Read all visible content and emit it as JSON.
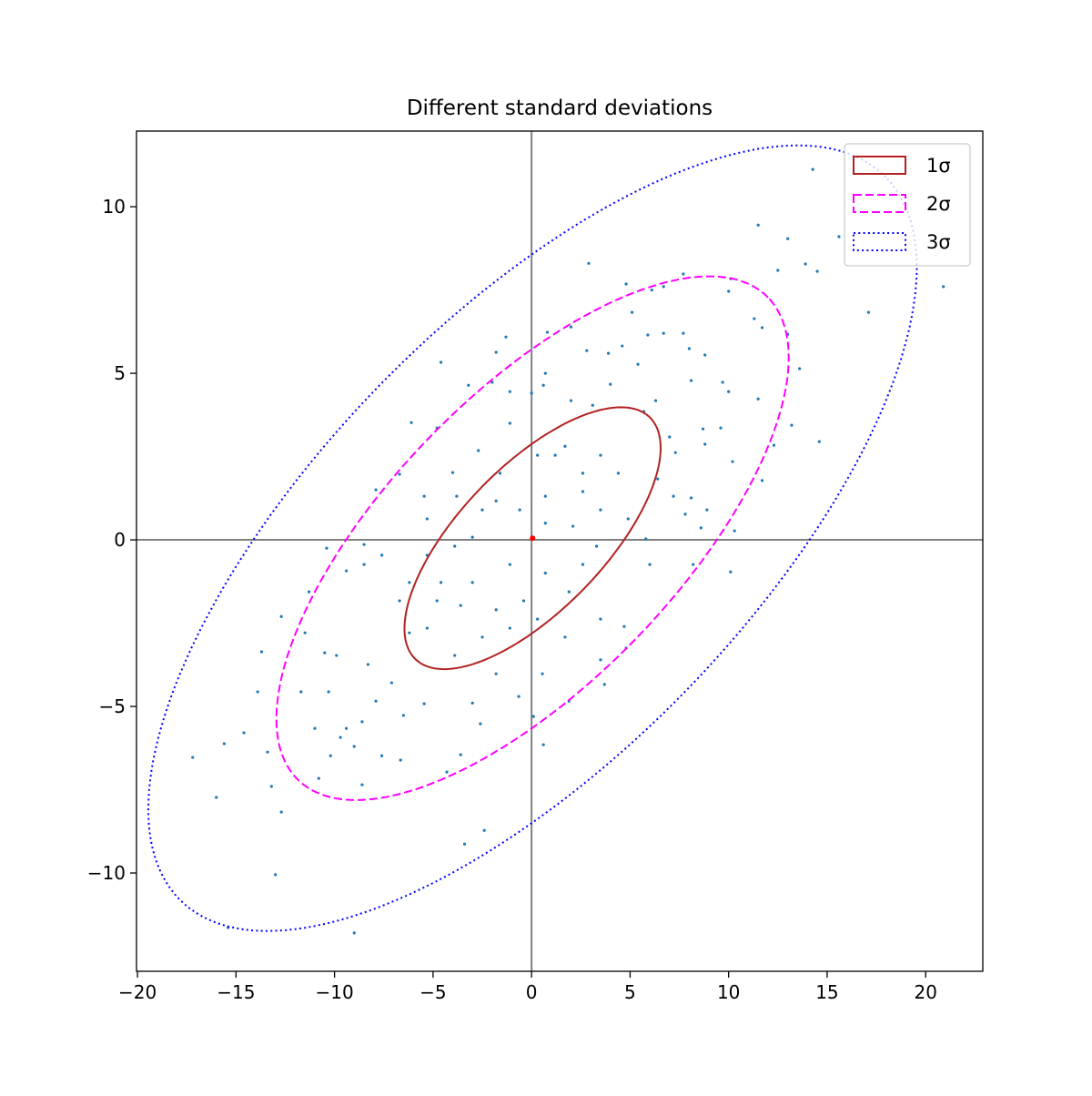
{
  "chart_data": {
    "type": "scatter",
    "title": "Different standard deviations",
    "xlabel": "",
    "ylabel": "",
    "xlim": [
      -20.05,
      22.9
    ],
    "ylim": [
      -12.95,
      12.27
    ],
    "xticks": [
      -20,
      -15,
      -10,
      -5,
      0,
      5,
      10,
      15,
      20
    ],
    "yticks": [
      -10,
      -5,
      0,
      5,
      10
    ],
    "xtick_labels": [
      "−20",
      "−15",
      "−10",
      "−5",
      "0",
      "5",
      "10",
      "15",
      "20"
    ],
    "ytick_labels": [
      "−10",
      "−5",
      "0",
      "5",
      "10"
    ],
    "grid": false,
    "reference_lines": {
      "x": 0,
      "y": 0,
      "color": "#808080"
    },
    "scatter_color": "#1f77b4",
    "mean_marker_color": "#ff0000",
    "legend_position": "top-right",
    "ellipse_params": {
      "mean": [
        0.05,
        0.05
      ],
      "std_x": 6.5,
      "std_y": 3.93,
      "pearson": 0.69
    },
    "ellipses": [
      {
        "label": "1σ",
        "n_std": 1,
        "color": "#b22222",
        "style": "solid"
      },
      {
        "label": "2σ",
        "n_std": 2,
        "color": "#ff00ff",
        "style": "dashed"
      },
      {
        "label": "3σ",
        "n_std": 3,
        "color": "#0000ff",
        "style": "dotted"
      }
    ],
    "points": [
      [
        14.27,
        11.12
      ],
      [
        11.5,
        9.45
      ],
      [
        13.0,
        9.04
      ],
      [
        15.6,
        9.1
      ],
      [
        20.9,
        7.6
      ],
      [
        17.1,
        6.83
      ],
      [
        14.5,
        8.06
      ],
      [
        13.9,
        8.28
      ],
      [
        12.5,
        8.09
      ],
      [
        2.9,
        8.3
      ],
      [
        10.1,
        7.84
      ],
      [
        7.7,
        7.98
      ],
      [
        4.8,
        7.68
      ],
      [
        6.1,
        7.5
      ],
      [
        6.7,
        7.6
      ],
      [
        10,
        7.46
      ],
      [
        11.3,
        6.64
      ],
      [
        11.7,
        6.37
      ],
      [
        13.0,
        6.17
      ],
      [
        13.6,
        5.14
      ],
      [
        13.2,
        3.44
      ],
      [
        14.6,
        2.95
      ],
      [
        12.3,
        2.84
      ],
      [
        11.7,
        1.78
      ],
      [
        10.2,
        2.35
      ],
      [
        10.3,
        0.27
      ],
      [
        11.5,
        4.23
      ],
      [
        9.6,
        3.36
      ],
      [
        8.8,
        2.87
      ],
      [
        8.7,
        3.33
      ],
      [
        10,
        4.45
      ],
      [
        9.7,
        4.73
      ],
      [
        8.1,
        4.78
      ],
      [
        8,
        5.74
      ],
      [
        8.8,
        5.55
      ],
      [
        7.7,
        6.2
      ],
      [
        6.7,
        6.2
      ],
      [
        5.9,
        6.15
      ],
      [
        5.1,
        6.83
      ],
      [
        4.6,
        5.82
      ],
      [
        3.9,
        5.6
      ],
      [
        2.8,
        5.68
      ],
      [
        2,
        6.39
      ],
      [
        0.8,
        6.23
      ],
      [
        -1.3,
        6.09
      ],
      [
        -1.8,
        5.63
      ],
      [
        -4.6,
        5.33
      ],
      [
        -3.2,
        4.64
      ],
      [
        -2,
        4.73
      ],
      [
        0,
        4.4
      ],
      [
        0.6,
        4.64
      ],
      [
        2,
        4.18
      ],
      [
        3.1,
        4.04
      ],
      [
        4,
        4.67
      ],
      [
        5.7,
        3.85
      ],
      [
        7,
        3.09
      ],
      [
        7.3,
        2.62
      ],
      [
        6.4,
        1.83
      ],
      [
        7.2,
        1.31
      ],
      [
        8.1,
        1.26
      ],
      [
        8.9,
        0.9
      ],
      [
        8.6,
        0.36
      ],
      [
        7.8,
        0.77
      ],
      [
        5.8,
        0.03
      ],
      [
        6,
        -0.74
      ],
      [
        8.2,
        -0.74
      ],
      [
        10.1,
        -0.96
      ],
      [
        -6.1,
        3.52
      ],
      [
        -6.7,
        1.97
      ],
      [
        -7.9,
        1.5
      ],
      [
        -5.45,
        1.31
      ],
      [
        -4,
        2.02
      ],
      [
        -3.8,
        1.31
      ],
      [
        -2.7,
        2.68
      ],
      [
        -1.1,
        3.5
      ],
      [
        0.3,
        2.54
      ],
      [
        1.7,
        2.81
      ],
      [
        2.6,
        2
      ],
      [
        3.5,
        2.54
      ],
      [
        4.4,
        2
      ],
      [
        -1.8,
        1.17
      ],
      [
        -0.6,
        0.9
      ],
      [
        0.7,
        0.5
      ],
      [
        2.1,
        0.41
      ],
      [
        3.5,
        0.9
      ],
      [
        4.9,
        0.63
      ],
      [
        -3,
        0.08
      ],
      [
        -3.9,
        -0.19
      ],
      [
        -5.3,
        -0.46
      ],
      [
        -6.2,
        -1.28
      ],
      [
        -7.6,
        -0.46
      ],
      [
        -8.5,
        -0.74
      ],
      [
        -6.7,
        -1.83
      ],
      [
        -4.8,
        -1.83
      ],
      [
        -3,
        -1.28
      ],
      [
        -1.1,
        -0.74
      ],
      [
        0.7,
        -1
      ],
      [
        2.6,
        -0.74
      ],
      [
        3.5,
        -2.38
      ],
      [
        1.7,
        -2.92
      ],
      [
        0.3,
        -2.38
      ],
      [
        -1.1,
        -2.65
      ],
      [
        -2.5,
        -2.92
      ],
      [
        -3.9,
        -3.47
      ],
      [
        -5.3,
        -2.65
      ],
      [
        -1.8,
        -4.02
      ],
      [
        -0.65,
        -4.7
      ],
      [
        0.55,
        -4.02
      ],
      [
        1.9,
        -4.84
      ],
      [
        0.1,
        -5.3
      ],
      [
        0.6,
        -6.15
      ],
      [
        -3,
        -4.9
      ],
      [
        -2.6,
        -5.52
      ],
      [
        -3.6,
        -6.45
      ],
      [
        -4.3,
        -6.97
      ],
      [
        -2.4,
        -8.72
      ],
      [
        -3.4,
        -9.13
      ],
      [
        3.7,
        -4.34
      ],
      [
        3.5,
        -3.6
      ],
      [
        4.8,
        -3.25
      ],
      [
        4.7,
        -2.6
      ],
      [
        -6.2,
        -2.79
      ],
      [
        -7.1,
        -4.29
      ],
      [
        -8.3,
        -3.74
      ],
      [
        -7.9,
        -4.84
      ],
      [
        -8.6,
        -5.46
      ],
      [
        -9.4,
        -5.66
      ],
      [
        -9,
        -6.2
      ],
      [
        -7.6,
        -6.48
      ],
      [
        -6.65,
        -6.61
      ],
      [
        -5.45,
        -4.92
      ],
      [
        -6.5,
        -5.27
      ],
      [
        -10.3,
        -4.56
      ],
      [
        -9.9,
        -3.47
      ],
      [
        -11,
        -5.66
      ],
      [
        -11.7,
        -4.56
      ],
      [
        -11.5,
        -2.79
      ],
      [
        -11.3,
        -1.56
      ],
      [
        -12.7,
        -2.3
      ],
      [
        -10.5,
        -3.39
      ],
      [
        -13.7,
        -3.36
      ],
      [
        -13.9,
        -4.56
      ],
      [
        -14.6,
        -5.79
      ],
      [
        -13.4,
        -6.37
      ],
      [
        -13.2,
        -7.4
      ],
      [
        -12.7,
        -8.17
      ],
      [
        -13,
        -10.05
      ],
      [
        -10.8,
        -7.16
      ],
      [
        -10.2,
        -6.48
      ],
      [
        -9.7,
        -5.93
      ],
      [
        -8.6,
        -7.35
      ],
      [
        -9,
        -11.8
      ],
      [
        -15.4,
        -11.64
      ],
      [
        -15.6,
        -6.12
      ],
      [
        -17.2,
        -6.53
      ],
      [
        -16,
        -7.73
      ],
      [
        -9.4,
        -0.93
      ],
      [
        -10.4,
        -0.25
      ],
      [
        -8.5,
        -0.14
      ],
      [
        -5.3,
        0.63
      ],
      [
        -1.6,
        2
      ],
      [
        -1.1,
        4.45
      ],
      [
        1.2,
        2.54
      ],
      [
        5.4,
        5.27
      ],
      [
        6.3,
        4.18
      ],
      [
        0.7,
        5
      ],
      [
        -4.8,
        3.36
      ],
      [
        -2.5,
        0.9
      ],
      [
        0.7,
        1.31
      ],
      [
        2.6,
        1.45
      ],
      [
        3.3,
        -0.19
      ],
      [
        1.9,
        -1.56
      ],
      [
        -0.4,
        -1.83
      ],
      [
        -1.8,
        -2.1
      ],
      [
        -3.6,
        -1.97
      ],
      [
        -4.6,
        -1.28
      ]
    ]
  }
}
